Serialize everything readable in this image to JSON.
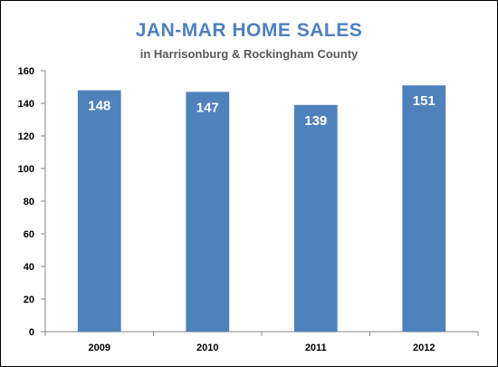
{
  "chart_data": {
    "type": "bar",
    "title": "JAN-MAR HOME SALES",
    "subtitle": "in Harrisonburg & Rockingham County",
    "categories": [
      "2009",
      "2010",
      "2011",
      "2012"
    ],
    "values": [
      148,
      147,
      139,
      151
    ],
    "xlabel": "",
    "ylabel": "",
    "ylim": [
      0,
      160
    ],
    "yticks": [
      0,
      20,
      40,
      60,
      80,
      100,
      120,
      140,
      160
    ],
    "grid": false,
    "legend": "none",
    "data_labels": true,
    "colors": {
      "bar": "#4f81bd",
      "title": "#4f81bd",
      "subtitle": "#595959",
      "data_label": "#ffffff",
      "axis": "#868686"
    }
  }
}
